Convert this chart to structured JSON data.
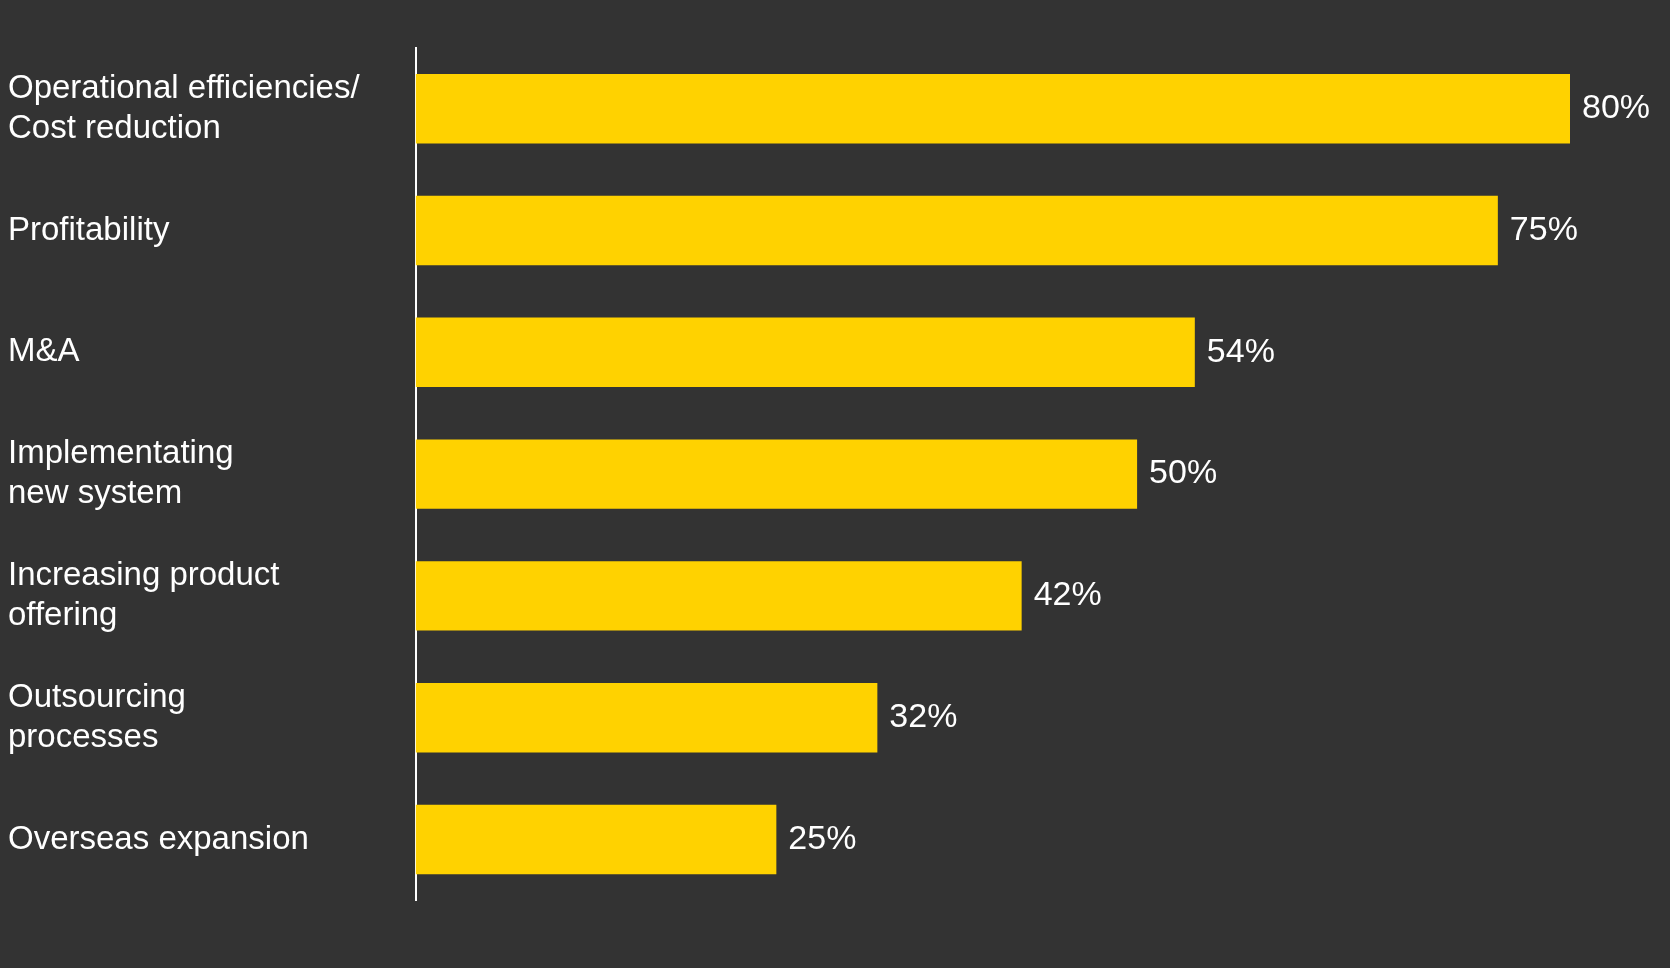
{
  "chart_data": {
    "type": "bar",
    "orientation": "horizontal",
    "categories": [
      "Operational efficiencies/\nCost reduction",
      "Profitability",
      "M&A",
      "Implementating \nnew system",
      "Increasing product\noffering",
      "Outsourcing\nprocesses",
      "Overseas expansion"
    ],
    "values": [
      80,
      75,
      54,
      50,
      42,
      32,
      25
    ],
    "value_labels": [
      "80%",
      "75%",
      "54%",
      "50%",
      "42%",
      "32%",
      "25%"
    ],
    "color": "#ffd200"
  }
}
